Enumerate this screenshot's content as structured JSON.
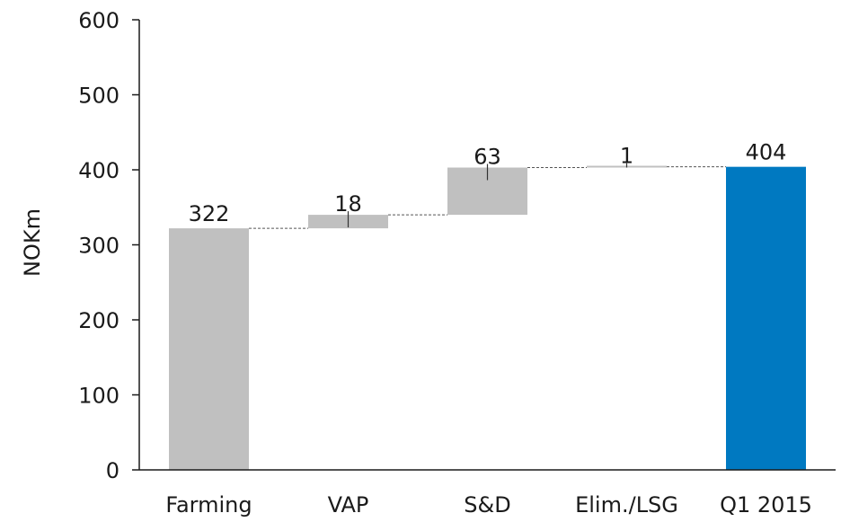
{
  "chart_data": {
    "type": "bar",
    "subtype": "waterfall",
    "categories": [
      "Farming",
      "VAP",
      "S&D",
      "Elim./LSG",
      "Q1 2015"
    ],
    "values": [
      322,
      18,
      63,
      1,
      404
    ],
    "value_labels": [
      "322",
      "18",
      "63",
      "1",
      "404"
    ],
    "bar_roles": [
      "total",
      "increment",
      "increment",
      "increment",
      "total"
    ],
    "ylabel": "NOKm",
    "ylim": [
      0,
      600
    ],
    "yticks": [
      0,
      100,
      200,
      300,
      400,
      500,
      600
    ],
    "grid": false,
    "legend": "none",
    "colors": {
      "total": "#c0c0c0",
      "increment": "#c0c0c0",
      "final_total": "#0079c1",
      "axis": "#1a1a1a",
      "connector": "#555555"
    }
  }
}
